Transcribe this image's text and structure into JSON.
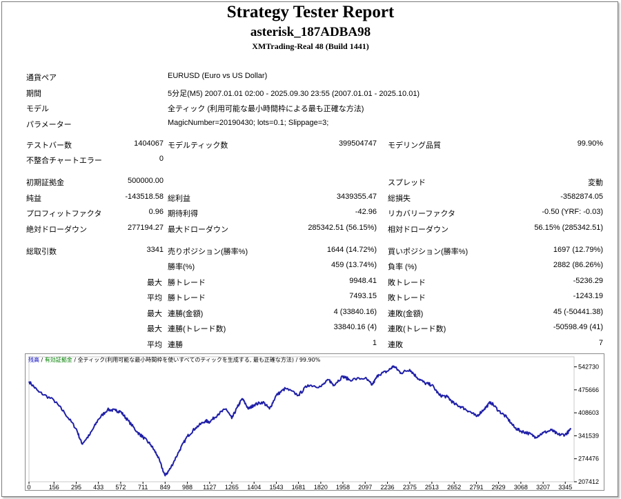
{
  "report": {
    "title": "Strategy Tester Report",
    "expert": "asterisk_187ADBA98",
    "server": "XMTrading-Real 48 (Build 1441)"
  },
  "info": [
    {
      "label": "通貨ペア",
      "value": "EURUSD (Euro vs US Dollar)"
    },
    {
      "label": "期間",
      "value": "5分足(M5) 2007.01.01 02:00 - 2025.09.30 23:55 (2007.01.01 - 2025.10.01)"
    },
    {
      "label": "モデル",
      "value": "全ティック (利用可能な最小時間枠による最も正確な方法)"
    },
    {
      "label": "パラメーター",
      "value": "MagicNumber=20190430; lots=0.1; Slippage=3;"
    }
  ],
  "stats": {
    "test_bars": {
      "label": "テストバー数",
      "value": "1404067"
    },
    "model_ticks": {
      "label": "モデルティック数",
      "value": "399504747"
    },
    "model_quality": {
      "label": "モデリング品質",
      "value": "99.90%"
    },
    "mismatch": {
      "label": "不整合チャートエラー",
      "value": "0"
    },
    "deposit": {
      "label": "初期証拠金",
      "value": "500000.00"
    },
    "spread": {
      "label": "スプレッド",
      "value": "変動"
    },
    "net_profit": {
      "label": "純益",
      "value": "-143518.58"
    },
    "gross_profit": {
      "label": "総利益",
      "value": "3439355.47"
    },
    "gross_loss": {
      "label": "総損失",
      "value": "-3582874.05"
    },
    "profit_factor": {
      "label": "プロフィットファクタ",
      "value": "0.96"
    },
    "expected_payoff": {
      "label": "期待利得",
      "value": "-42.96"
    },
    "recovery_factor": {
      "label": "リカバリーファクタ",
      "value": "-0.50 (YRF: -0.03)"
    },
    "abs_drawdown": {
      "label": "絶対ドローダウン",
      "value": "277194.27"
    },
    "max_drawdown": {
      "label": "最大ドローダウン",
      "value": "285342.51 (56.15%)"
    },
    "rel_drawdown": {
      "label": "相対ドローダウン",
      "value": "56.15% (285342.51)"
    },
    "total_trades": {
      "label": "総取引数",
      "value": "3341"
    },
    "short_pos": {
      "label": "売りポジション(勝率%)",
      "value": "1644 (14.72%)"
    },
    "long_pos": {
      "label": "買いポジション(勝率%)",
      "value": "1697 (12.79%)"
    },
    "win_rate": {
      "label": "勝率(%)",
      "value": "459 (13.74%)"
    },
    "loss_rate": {
      "label": "負率 (%)",
      "value": "2882 (86.26%)"
    },
    "max_win": {
      "key": "最大",
      "label": "勝トレード",
      "value": "9948.41"
    },
    "max_loss": {
      "label": "敗トレード",
      "value": "-5236.29"
    },
    "avg_win": {
      "key": "平均",
      "label": "勝トレード",
      "value": "7493.15"
    },
    "avg_loss": {
      "label": "敗トレード",
      "value": "-1243.19"
    },
    "max_cons_win_amt": {
      "key": "最大",
      "label": "連勝(金額)",
      "value": "4 (33840.16)"
    },
    "max_cons_loss_amt": {
      "label": "連敗(金額)",
      "value": "45 (-50441.38)"
    },
    "max_cons_win_cnt": {
      "key": "最大",
      "label": "連勝(トレード数)",
      "value": "33840.16 (4)"
    },
    "max_cons_loss_cnt": {
      "label": "連敗(トレード数)",
      "value": "-50598.49 (41)"
    },
    "avg_cons_win": {
      "key": "平均",
      "label": "連勝",
      "value": "1"
    },
    "avg_cons_loss": {
      "label": "連敗",
      "value": "7"
    }
  },
  "chart_legend": {
    "balance": "残高",
    "sep1": " / ",
    "margin": "有効証拠金",
    "sep2": " / ",
    "model": "全ティック(利用可能な最小時間枠を使いすべてのティックを生成する, 最も正確な方法)",
    "sep3": " / ",
    "quality": "99.90%"
  },
  "colors": {
    "balance": "#1f1fa8",
    "legend_balance": "#0000c0",
    "legend_margin": "#008000"
  },
  "chart_data": {
    "type": "line",
    "series": [
      {
        "name": "残高",
        "points": [
          [
            0,
            500000
          ],
          [
            60,
            470000
          ],
          [
            156,
            445000
          ],
          [
            220,
            410000
          ],
          [
            295,
            362000
          ],
          [
            330,
            318000
          ],
          [
            380,
            345000
          ],
          [
            433,
            390000
          ],
          [
            490,
            418000
          ],
          [
            540,
            415000
          ],
          [
            572,
            412000
          ],
          [
            620,
            385000
          ],
          [
            680,
            350000
          ],
          [
            711,
            338000
          ],
          [
            760,
            315000
          ],
          [
            800,
            285000
          ],
          [
            849,
            225000
          ],
          [
            880,
            245000
          ],
          [
            940,
            300000
          ],
          [
            988,
            340000
          ],
          [
            1040,
            365000
          ],
          [
            1100,
            385000
          ],
          [
            1127,
            382000
          ],
          [
            1180,
            405000
          ],
          [
            1230,
            420000
          ],
          [
            1265,
            392000
          ],
          [
            1300,
            425000
          ],
          [
            1330,
            450000
          ],
          [
            1370,
            420000
          ],
          [
            1404,
            432000
          ],
          [
            1460,
            440000
          ],
          [
            1500,
            420000
          ],
          [
            1543,
            460000
          ],
          [
            1600,
            480000
          ],
          [
            1681,
            460000
          ],
          [
            1740,
            490000
          ],
          [
            1820,
            485000
          ],
          [
            1870,
            505000
          ],
          [
            1900,
            490000
          ],
          [
            1958,
            515000
          ],
          [
            2000,
            505000
          ],
          [
            2097,
            510000
          ],
          [
            2140,
            490000
          ],
          [
            2180,
            520000
          ],
          [
            2236,
            530000
          ],
          [
            2275,
            545000
          ],
          [
            2320,
            525000
          ],
          [
            2375,
            535000
          ],
          [
            2420,
            512000
          ],
          [
            2470,
            495000
          ],
          [
            2513,
            490000
          ],
          [
            2560,
            460000
          ],
          [
            2610,
            455000
          ],
          [
            2652,
            435000
          ],
          [
            2700,
            425000
          ],
          [
            2750,
            412000
          ],
          [
            2791,
            398000
          ],
          [
            2840,
            420000
          ],
          [
            2880,
            440000
          ],
          [
            2929,
            415000
          ],
          [
            2980,
            395000
          ],
          [
            3030,
            365000
          ],
          [
            3068,
            355000
          ],
          [
            3110,
            350000
          ],
          [
            3160,
            338000
          ],
          [
            3207,
            350000
          ],
          [
            3260,
            358000
          ],
          [
            3300,
            345000
          ],
          [
            3345,
            345000
          ],
          [
            3380,
            360000
          ]
        ]
      }
    ],
    "x_ticks": [
      0,
      156,
      295,
      433,
      572,
      711,
      849,
      988,
      1127,
      1265,
      1404,
      1543,
      1681,
      1820,
      1958,
      2097,
      2236,
      2375,
      2513,
      2652,
      2791,
      2929,
      3068,
      3207,
      3345
    ],
    "y_ticks": [
      542730,
      475666,
      408603,
      341539,
      274476,
      207412
    ],
    "xlim": [
      0,
      3400
    ],
    "ylim": [
      207412,
      572000
    ],
    "grid": true
  }
}
